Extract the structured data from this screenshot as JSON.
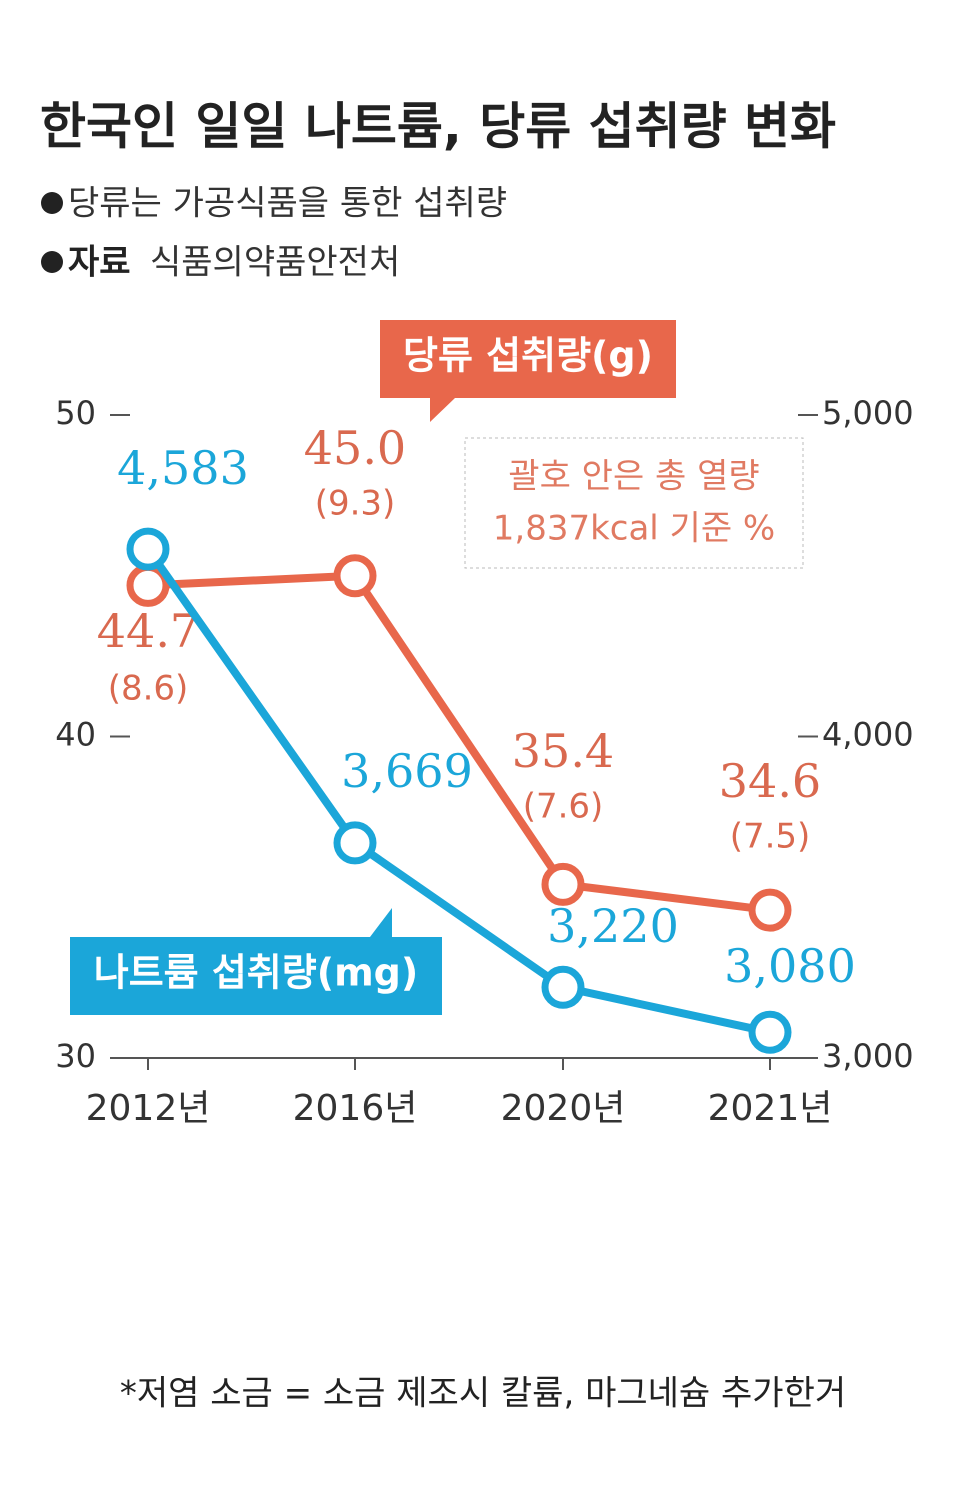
{
  "chart_data": {
    "type": "line",
    "title": "한국인 일일 나트륨, 당류 섭취량 변화",
    "subtitle": "당류는 가공식품을 통한 섭취량",
    "source_label": "자료",
    "source": "식품의약품안전처",
    "annotation": [
      "괄호 안은 총 열량",
      "1,837kcal 기준 %"
    ],
    "footnote": "*저염 소금 = 소금 제조시 칼륨, 마그네슘 추가한거",
    "categories": [
      "2012년",
      "2016년",
      "2020년",
      "2021년"
    ],
    "series": [
      {
        "name": "당류 섭취량(g)",
        "color": "#e8674b",
        "values": [
          44.7,
          45.0,
          35.4,
          34.6
        ],
        "value_labels": [
          "44.7",
          "45.0",
          "35.4",
          "34.6"
        ],
        "share_values": [
          8.6,
          9.3,
          7.6,
          7.5
        ],
        "share_labels": [
          "(8.6)",
          "(9.3)",
          "(7.6)",
          "(7.5)"
        ]
      },
      {
        "name": "나트륨 섭취량(mg)",
        "color": "#1ba6d9",
        "axis": "y2",
        "values": [
          4583,
          3669,
          3220,
          3080
        ],
        "value_labels": [
          "4,583",
          "3,669",
          "3,220",
          "3,080"
        ]
      }
    ],
    "ylim": [
      30,
      50
    ],
    "yticks": [
      30,
      40,
      50
    ],
    "y2lim": [
      3000,
      5000
    ],
    "y2ticks": [
      {
        "value": 3000,
        "label": "3,000"
      },
      {
        "value": 4000,
        "label": "4,000"
      },
      {
        "value": 5000,
        "label": "5,000"
      }
    ]
  }
}
